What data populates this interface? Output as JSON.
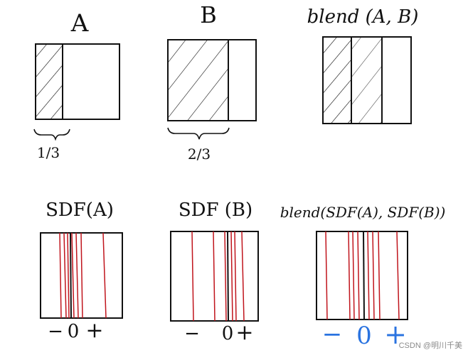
{
  "labels": {
    "a": "A",
    "b": "B",
    "blend": "blend (A, B)",
    "a_fraction": "1/3",
    "b_fraction": "2/3",
    "sdf_a": "SDF(A)",
    "sdf_b": "SDF (B)",
    "blend_sdf": "blend(SDF(A), SDF(B))",
    "axis_minus": "−",
    "axis_zero": "0",
    "axis_plus": "+"
  },
  "colors": {
    "ink": "#111111",
    "red_line": "#c0141c",
    "blue_axis": "#2a73e0"
  },
  "watermark": "CSDN @明川千美"
}
